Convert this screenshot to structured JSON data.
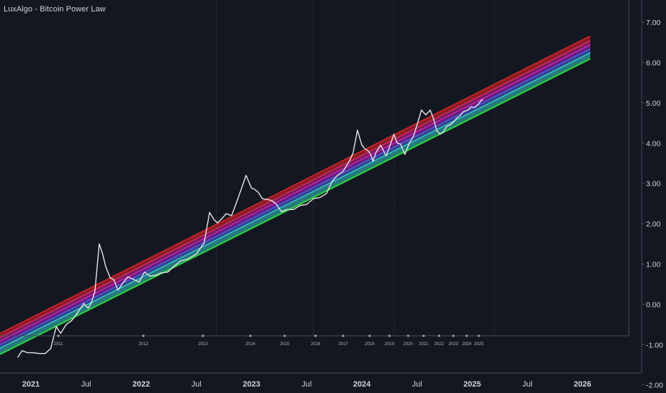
{
  "header": {
    "title": "LuxAlgo - Bitcoin Power Law"
  },
  "colors": {
    "background": "#131722",
    "price": "#e8e8e8",
    "axis_text": "#d1d4dc",
    "grid": "#3a3e4a",
    "frame": "#4a4e5a",
    "band_fills": [
      "#a01e24",
      "#8e1f5e",
      "#7a1f86",
      "#3d4aa6",
      "#2a8c8c",
      "#1f8c3a"
    ],
    "band_lines": [
      "#e0262c",
      "#d92b6f",
      "#c02ad6",
      "#4a62e0",
      "#33d0c8",
      "#2bd63a"
    ]
  },
  "chart_data": {
    "type": "line",
    "yaxis": {
      "ticks": [
        "7.00",
        "6.00",
        "5.00",
        "4.00",
        "3.00",
        "2.00",
        "1.00",
        "0.00",
        "-1.00",
        "-2.00"
      ],
      "tick_values": [
        7,
        6,
        5,
        4,
        3,
        2,
        1,
        0,
        -1,
        -2
      ],
      "ylim": [
        -2.2,
        7.55
      ]
    },
    "xaxis": {
      "labels": [
        "2021",
        "Jul",
        "2022",
        "Jul",
        "2023",
        "Jul",
        "2024",
        "Jul",
        "2025",
        "Jul",
        "2026"
      ],
      "label_values": [
        2021.0,
        2021.5,
        2022.0,
        2022.5,
        2023.0,
        2023.5,
        2024.0,
        2024.5,
        2025.0,
        2025.5,
        2026.0
      ],
      "bold": [
        true,
        false,
        true,
        false,
        true,
        false,
        true,
        false,
        true,
        false,
        true
      ],
      "xlim": [
        2020.72,
        2026.42
      ]
    },
    "vertical_gridlines": [
      2022.68,
      2023.56,
      2024.29,
      2025.2
    ],
    "year_markers": {
      "labels": [
        "2011",
        "2012",
        "2013",
        "2014",
        "2015",
        "2016",
        "2017",
        "2018",
        "2019",
        "2020",
        "2021",
        "2022",
        "2023",
        "2024",
        "2025"
      ],
      "x": [
        2021.25,
        2022.02,
        2022.56,
        2022.99,
        2023.3,
        2023.58,
        2023.83,
        2024.07,
        2024.25,
        2024.42,
        2024.56,
        2024.7,
        2024.83,
        2024.95,
        2025.06
      ]
    },
    "bands": {
      "x_range": [
        2020.72,
        2026.07
      ],
      "lines_start": [
        -0.72,
        -0.82,
        -0.91,
        -1.0,
        -1.09,
        -1.24
      ],
      "lines_end": [
        6.66,
        6.54,
        6.44,
        6.34,
        6.24,
        6.09
      ]
    },
    "series": [
      {
        "x": [
          2020.88,
          2020.92,
          2020.97,
          2021.02,
          2021.07,
          2021.13,
          2021.18,
          2021.23,
          2021.27,
          2021.32,
          2021.37,
          2021.42,
          2021.48,
          2021.52,
          2021.55,
          2021.58,
          2021.62,
          2021.65,
          2021.68,
          2021.72,
          2021.75,
          2021.79,
          2021.83,
          2021.88,
          2021.93,
          2021.98,
          2022.03,
          2022.08,
          2022.13,
          2022.18,
          2022.24,
          2022.3,
          2022.36,
          2022.42,
          2022.5,
          2022.57,
          2022.62,
          2022.66,
          2022.69,
          2022.73,
          2022.77,
          2022.82,
          2022.88,
          2022.95,
          2023.0,
          2023.03,
          2023.06,
          2023.1,
          2023.14,
          2023.18,
          2023.22,
          2023.27,
          2023.32,
          2023.38,
          2023.44,
          2023.5,
          2023.56,
          2023.62,
          2023.68,
          2023.73,
          2023.78,
          2023.83,
          2023.88,
          2023.92,
          2023.96,
          2024.0,
          2024.03,
          2024.06,
          2024.08,
          2024.1,
          2024.13,
          2024.17,
          2024.22,
          2024.26,
          2024.29,
          2024.32,
          2024.35,
          2024.39,
          2024.43,
          2024.47,
          2024.5,
          2024.54,
          2024.58,
          2024.62,
          2024.65,
          2024.68,
          2024.71,
          2024.74,
          2024.77,
          2024.8,
          2024.83,
          2024.86,
          2024.89,
          2024.92,
          2024.96,
          2024.99,
          2025.02,
          2025.05,
          2025.08,
          2025.1
        ],
        "y": [
          -1.32,
          -1.15,
          -1.2,
          -1.2,
          -1.22,
          -1.22,
          -1.1,
          -0.55,
          -0.72,
          -0.5,
          -0.4,
          -0.22,
          0.02,
          -0.1,
          0.05,
          0.32,
          1.5,
          1.25,
          0.92,
          0.65,
          0.62,
          0.35,
          0.52,
          0.68,
          0.62,
          0.55,
          0.8,
          0.7,
          0.72,
          0.78,
          0.8,
          0.95,
          1.08,
          1.12,
          1.25,
          1.52,
          2.28,
          2.1,
          2.02,
          2.12,
          2.25,
          2.2,
          2.65,
          3.2,
          2.88,
          2.85,
          2.78,
          2.62,
          2.6,
          2.58,
          2.5,
          2.3,
          2.35,
          2.35,
          2.45,
          2.48,
          2.62,
          2.65,
          2.75,
          3.05,
          3.2,
          3.3,
          3.52,
          3.75,
          4.32,
          3.95,
          3.85,
          3.8,
          3.72,
          3.55,
          3.78,
          3.95,
          3.68,
          3.98,
          4.22,
          4.0,
          3.98,
          3.72,
          4.0,
          4.18,
          4.45,
          4.82,
          4.7,
          4.82,
          4.6,
          4.3,
          4.22,
          4.28,
          4.42,
          4.45,
          4.52,
          4.62,
          4.68,
          4.78,
          4.82,
          4.9,
          4.88,
          4.95,
          5.05,
          5.08
        ]
      }
    ]
  }
}
